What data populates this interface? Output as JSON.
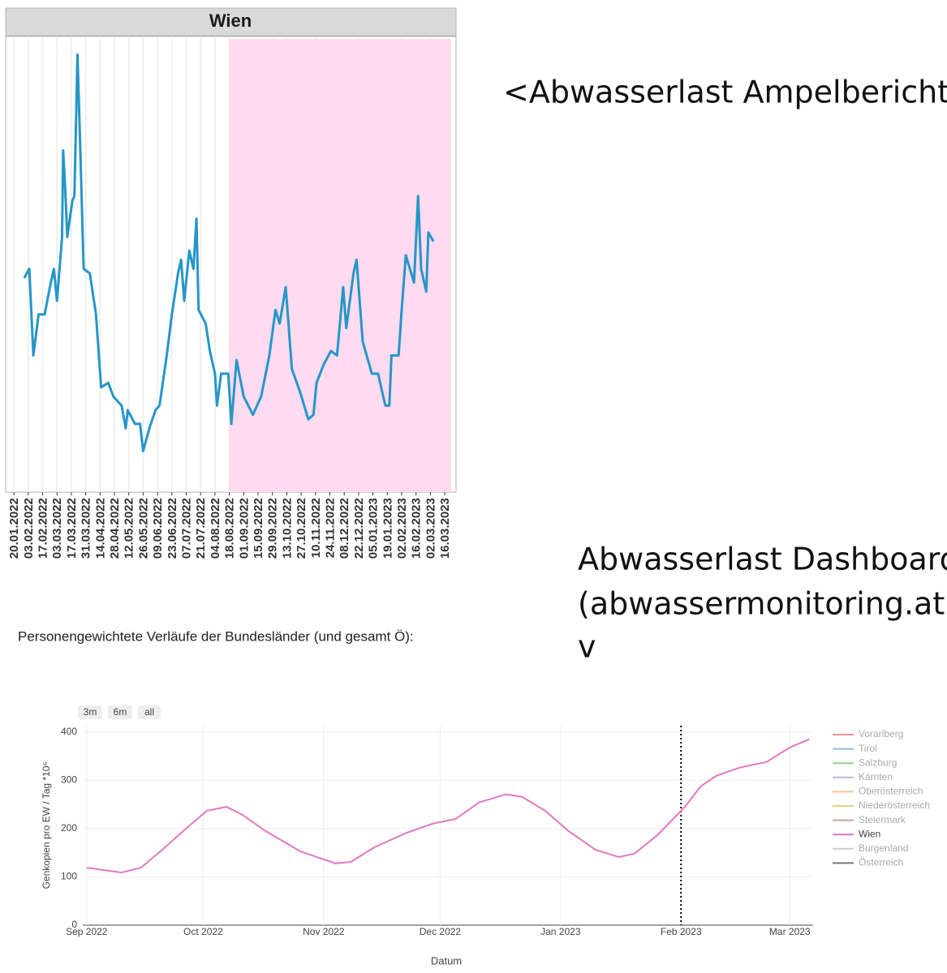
{
  "captions": {
    "top_right": "<Abwasserlast Ampelbericht",
    "dashboard": [
      "Abwasserlast Dashboard",
      "(abwassermonitoring.at)",
      "v"
    ],
    "section_title": "Personengewichtete Verläufe der Bundesländer (und gesamt Ö):"
  },
  "chart_data": [
    {
      "type": "line",
      "title": "Wien",
      "color": "#2596c8",
      "x": [
        "2022-01-30",
        "2022-02-04",
        "2022-02-08",
        "2022-02-13",
        "2022-02-19",
        "2022-02-25",
        "2022-02-28",
        "2022-03-03",
        "2022-03-08",
        "2022-03-09",
        "2022-03-11",
        "2022-03-13",
        "2022-03-18",
        "2022-03-20",
        "2022-03-23",
        "2022-03-25",
        "2022-03-29",
        "2022-04-04",
        "2022-04-10",
        "2022-04-15",
        "2022-04-22",
        "2022-04-27",
        "2022-05-05",
        "2022-05-09",
        "2022-05-11",
        "2022-05-18",
        "2022-05-23",
        "2022-05-26",
        "2022-06-01",
        "2022-06-07",
        "2022-06-11",
        "2022-06-18",
        "2022-06-23",
        "2022-06-29",
        "2022-07-02",
        "2022-07-05",
        "2022-07-10",
        "2022-07-14",
        "2022-07-17",
        "2022-07-19",
        "2022-07-26",
        "2022-07-30",
        "2022-08-04",
        "2022-08-06",
        "2022-08-10",
        "2022-08-17",
        "2022-08-20",
        "2022-08-25",
        "2022-09-01",
        "2022-09-10",
        "2022-09-18",
        "2022-09-26",
        "2022-10-02",
        "2022-10-06",
        "2022-10-12",
        "2022-10-18",
        "2022-10-26",
        "2022-11-03",
        "2022-11-08",
        "2022-11-11",
        "2022-11-18",
        "2022-11-25",
        "2022-12-01",
        "2022-12-05",
        "2022-12-07",
        "2022-12-10",
        "2022-12-17",
        "2022-12-20",
        "2022-12-26",
        "2023-01-04",
        "2023-01-10",
        "2023-01-17",
        "2023-01-21",
        "2023-01-23",
        "2023-01-30",
        "2023-02-02",
        "2023-02-06",
        "2023-02-14",
        "2023-02-18",
        "2023-02-21",
        "2023-02-26",
        "2023-02-28",
        "2023-03-05"
      ],
      "values": [
        47,
        49,
        30,
        39,
        39,
        46,
        49,
        42,
        56,
        75,
        67,
        56,
        64,
        65,
        96,
        81,
        49,
        48,
        39,
        23,
        24,
        21,
        19,
        14,
        18,
        15,
        15,
        9,
        14,
        18,
        19,
        30,
        39,
        48,
        51,
        42,
        53,
        49,
        60,
        40,
        37,
        31,
        26,
        19,
        26,
        26,
        15,
        29,
        21,
        17,
        21,
        30,
        40,
        37,
        45,
        27,
        22,
        16,
        17,
        24,
        28,
        31,
        30,
        40,
        45,
        36,
        48,
        51,
        33,
        26,
        26,
        19,
        19,
        30,
        30,
        40,
        52,
        46,
        65,
        49,
        44,
        57,
        55
      ],
      "xlim": [
        "2022-01-12",
        "2023-03-27"
      ],
      "ylim": [
        0,
        100
      ],
      "xticks": [
        {
          "value": "2022-01-20",
          "label": "20.01.2022"
        },
        {
          "value": "2022-02-03",
          "label": "03.02.2022"
        },
        {
          "value": "2022-02-17",
          "label": "17.02.2022"
        },
        {
          "value": "2022-03-03",
          "label": "03.03.2022"
        },
        {
          "value": "2022-03-17",
          "label": "17.03.2022"
        },
        {
          "value": "2022-03-31",
          "label": "31.03.2022"
        },
        {
          "value": "2022-04-14",
          "label": "14.04.2022"
        },
        {
          "value": "2022-04-28",
          "label": "28.04.2022"
        },
        {
          "value": "2022-05-12",
          "label": "12.05.2022"
        },
        {
          "value": "2022-05-26",
          "label": "26.05.2022"
        },
        {
          "value": "2022-06-09",
          "label": "09.06.2022"
        },
        {
          "value": "2022-06-23",
          "label": "23.06.2022"
        },
        {
          "value": "2022-07-07",
          "label": "07.07.2022"
        },
        {
          "value": "2022-07-21",
          "label": "21.07.2022"
        },
        {
          "value": "2022-08-04",
          "label": "04.08.2022"
        },
        {
          "value": "2022-08-18",
          "label": "18.08.2022"
        },
        {
          "value": "2022-09-01",
          "label": "01.09.2022"
        },
        {
          "value": "2022-09-15",
          "label": "15.09.2022"
        },
        {
          "value": "2022-09-29",
          "label": "29.09.2022"
        },
        {
          "value": "2022-10-13",
          "label": "13.10.2022"
        },
        {
          "value": "2022-10-27",
          "label": "27.10.2022"
        },
        {
          "value": "2022-11-10",
          "label": "10.11.2022"
        },
        {
          "value": "2022-11-24",
          "label": "24.11.2022"
        },
        {
          "value": "2022-12-08",
          "label": "08.12.2022"
        },
        {
          "value": "2022-12-22",
          "label": "22.12.2022"
        },
        {
          "value": "2023-01-05",
          "label": "05.01.2023"
        },
        {
          "value": "2023-01-19",
          "label": "19.01.2023"
        },
        {
          "value": "2023-02-02",
          "label": "02.02.2023"
        },
        {
          "value": "2023-02-16",
          "label": "16.02.2023"
        },
        {
          "value": "2023-03-02",
          "label": "02.03.2023"
        },
        {
          "value": "2023-03-16",
          "label": "16.03.2023"
        }
      ],
      "highlight": {
        "from": "2022-08-18",
        "color": "#ffd9ee"
      }
    },
    {
      "type": "line",
      "x_label": "Datum",
      "y_label": "Genkopien pro EW / Tag *10⁶",
      "range_buttons": [
        "3m",
        "6m",
        "all"
      ],
      "x": [
        "2022-09-01",
        "2022-09-10",
        "2022-09-15",
        "2022-09-20",
        "2022-09-27",
        "2022-10-02",
        "2022-10-07",
        "2022-10-11",
        "2022-10-17",
        "2022-10-26",
        "2022-11-04",
        "2022-11-08",
        "2022-11-14",
        "2022-11-22",
        "2022-11-29",
        "2022-12-05",
        "2022-12-11",
        "2022-12-18",
        "2022-12-22",
        "2022-12-28",
        "2023-01-03",
        "2023-01-10",
        "2023-01-16",
        "2023-01-20",
        "2023-01-26",
        "2023-02-02",
        "2023-02-06",
        "2023-02-10",
        "2023-02-16",
        "2023-02-23",
        "2023-03-01",
        "2023-03-06"
      ],
      "series": [
        {
          "name": "Vorarlberg",
          "color": "#eb9394",
          "visible": "legendonly"
        },
        {
          "name": "Tirol",
          "color": "#8fbbd9",
          "visible": "legendonly"
        },
        {
          "name": "Salzburg",
          "color": "#95cf95",
          "visible": "legendonly"
        },
        {
          "name": "Kärnten",
          "color": "#c9b3de",
          "visible": "legendonly"
        },
        {
          "name": "Oberösterreich",
          "color": "#ffbf86",
          "visible": "legendonly"
        },
        {
          "name": "Niederösterreich",
          "color": "#e6cf7f",
          "visible": "legendonly"
        },
        {
          "name": "Steiermark",
          "color": "#c6a39d",
          "visible": "legendonly"
        },
        {
          "name": "Wien",
          "color": "#e377c2",
          "visible": true,
          "values": [
            119,
            109,
            119,
            153,
            203,
            237,
            245,
            229,
            195,
            153,
            128,
            131,
            161,
            190,
            210,
            220,
            254,
            271,
            266,
            237,
            195,
            156,
            141,
            148,
            187,
            245,
            287,
            309,
            326,
            338,
            368,
            385
          ]
        },
        {
          "name": "Burgenland",
          "color": "#cccccc",
          "visible": "legendonly"
        },
        {
          "name": "Österreich",
          "color": "#777777",
          "visible": "legendonly"
        }
      ],
      "xlim": [
        "2022-08-31",
        "2023-03-07"
      ],
      "ylim": [
        0,
        413
      ],
      "xticks": [
        {
          "value": "2022-09-01",
          "label": "Sep 2022"
        },
        {
          "value": "2022-10-01",
          "label": "Oct 2022"
        },
        {
          "value": "2022-11-01",
          "label": "Nov 2022"
        },
        {
          "value": "2022-12-01",
          "label": "Dec 2022"
        },
        {
          "value": "2023-01-01",
          "label": "Jan 2023"
        },
        {
          "value": "2023-02-01",
          "label": "Feb 2023"
        },
        {
          "value": "2023-03-01",
          "label": "Mar 2023"
        }
      ],
      "yticks": [
        0,
        100,
        200,
        300,
        400
      ],
      "grid": true,
      "vline": "2023-02-01",
      "legend": "right"
    }
  ]
}
